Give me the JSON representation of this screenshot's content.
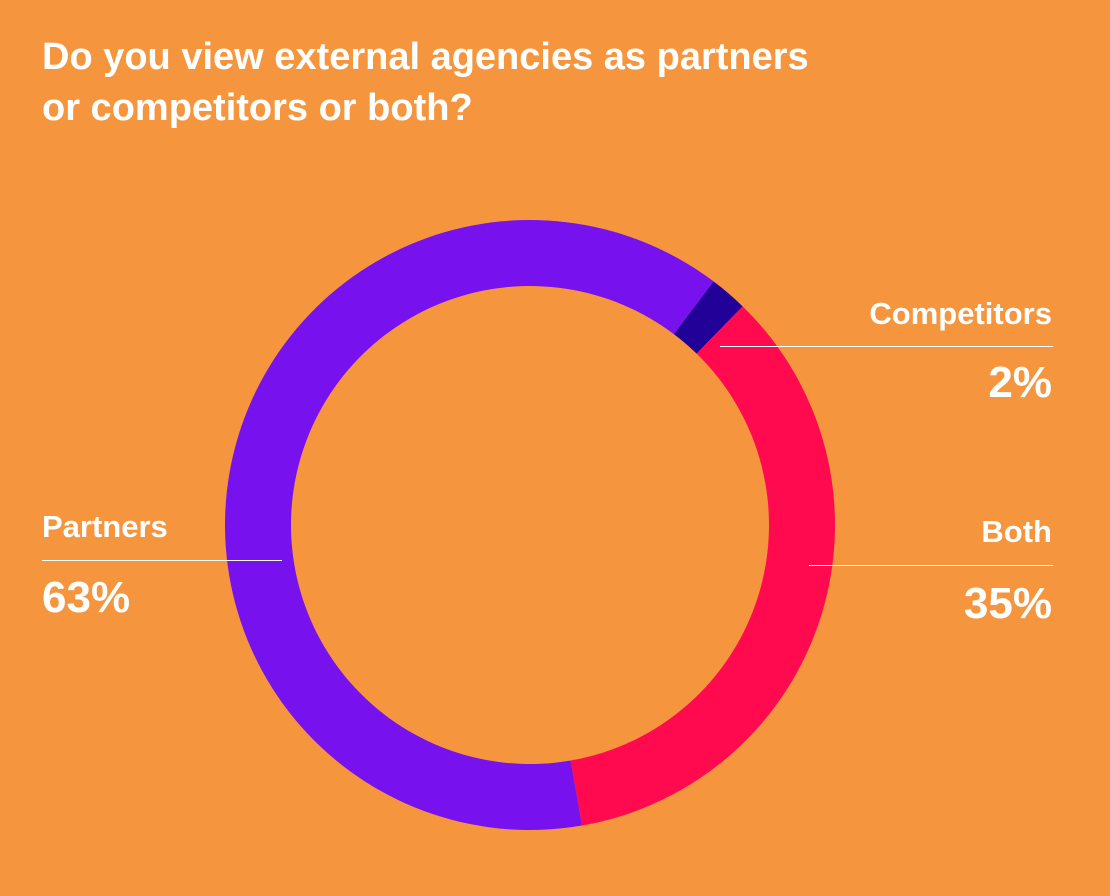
{
  "background": "#f5963f",
  "title_lines": [
    "Do you view external agencies as partners",
    "or competitors or both?"
  ],
  "chart_data": {
    "type": "pie",
    "style": "donut",
    "title": "Do you view external agencies as partners or competitors or both?",
    "slices": [
      {
        "label": "Competitors",
        "value": 2,
        "value_label": "2%",
        "color": "#220199"
      },
      {
        "label": "Both",
        "value": 35,
        "value_label": "35%",
        "color": "#ff0a4e"
      },
      {
        "label": "Partners",
        "value": 63,
        "value_label": "63%",
        "color": "#7711ed"
      }
    ]
  }
}
